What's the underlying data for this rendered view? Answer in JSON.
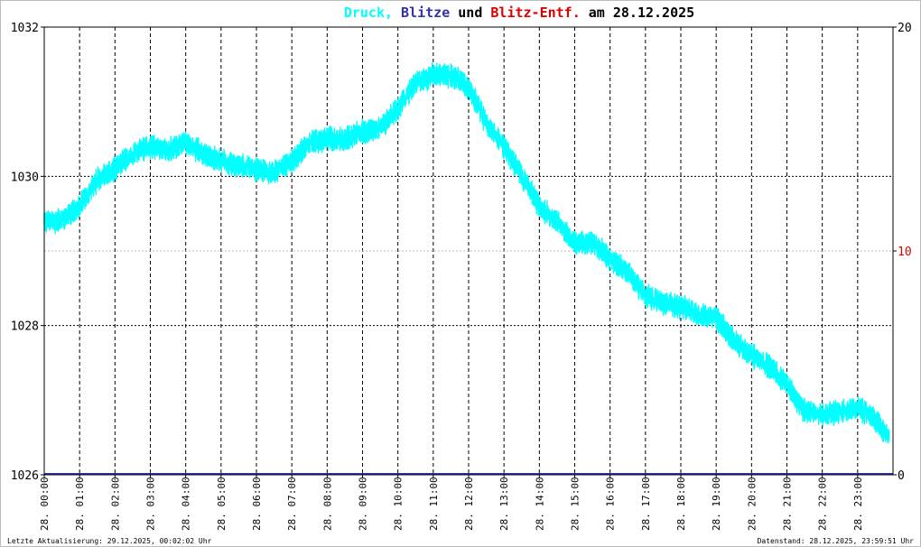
{
  "title": {
    "druck": "Druck,",
    "blitze": "Blitze",
    "und": "und",
    "entf": "Blitz-Entf.",
    "am": "am 28.12.2025"
  },
  "colors": {
    "pressure": "#00ffff",
    "lightning": "#3333aa",
    "distance": "#dd0000",
    "text": "#000000",
    "background": "#ffffff",
    "grid": "#000000",
    "frame": "#bbbbbb"
  },
  "chart_data": {
    "type": "line",
    "title": "Druck, Blitze und Blitz-Entf. am 28.12.2025",
    "x_range_hours": [
      0,
      24
    ],
    "x_tick_labels": [
      "28. 00:00",
      "28. 01:00",
      "28. 02:00",
      "28. 03:00",
      "28. 04:00",
      "28. 05:00",
      "28. 06:00",
      "28. 07:00",
      "28. 08:00",
      "28. 09:00",
      "28. 10:00",
      "28. 11:00",
      "28. 12:00",
      "28. 13:00",
      "28. 14:00",
      "28. 15:00",
      "28. 16:00",
      "28. 17:00",
      "28. 18:00",
      "28. 19:00",
      "28. 20:00",
      "28. 21:00",
      "28. 22:00",
      "28. 23:00"
    ],
    "y_left": {
      "ylim": [
        1026,
        1032
      ],
      "ticks": [
        "1026",
        "1028",
        "1030",
        "1032"
      ]
    },
    "y_right": {
      "ylim": [
        0,
        20
      ],
      "ticks": [
        "0",
        "10",
        "20"
      ]
    },
    "grid": true,
    "series": [
      {
        "name": "Druck",
        "axis": "left",
        "x": [
          0,
          0.5,
          1,
          1.5,
          2,
          2.5,
          3,
          3.5,
          4,
          4.5,
          5,
          5.5,
          6,
          6.5,
          7,
          7.5,
          8,
          8.5,
          9,
          9.5,
          10,
          10.5,
          11,
          11.5,
          12,
          12.5,
          13,
          13.5,
          14,
          14.5,
          15,
          15.5,
          16,
          16.5,
          17,
          17.5,
          18,
          18.5,
          19,
          19.5,
          20,
          20.5,
          21,
          21.5,
          22,
          22.5,
          23,
          23.5,
          23.9
        ],
        "values": [
          1029.4,
          1029.4,
          1029.6,
          1029.95,
          1030.1,
          1030.3,
          1030.4,
          1030.35,
          1030.45,
          1030.3,
          1030.2,
          1030.15,
          1030.1,
          1030.05,
          1030.2,
          1030.45,
          1030.5,
          1030.5,
          1030.6,
          1030.65,
          1030.9,
          1031.25,
          1031.35,
          1031.35,
          1031.2,
          1030.7,
          1030.4,
          1030.0,
          1029.6,
          1029.4,
          1029.1,
          1029.1,
          1028.9,
          1028.7,
          1028.4,
          1028.3,
          1028.25,
          1028.15,
          1028.1,
          1027.8,
          1027.6,
          1027.45,
          1027.2,
          1026.85,
          1026.8,
          1026.85,
          1026.9,
          1026.75,
          1026.5
        ]
      },
      {
        "name": "Blitze",
        "axis": "right",
        "x": [
          0,
          24
        ],
        "values": [
          0,
          0
        ]
      },
      {
        "name": "Blitz-Entf.",
        "axis": "right",
        "x": [],
        "values": []
      }
    ]
  },
  "footer": {
    "updated": "Letzte Aktualisierung: 29.12.2025, 00:02:02 Uhr",
    "data_state": "Datenstand: 28.12.2025, 23:59:51 Uhr"
  }
}
